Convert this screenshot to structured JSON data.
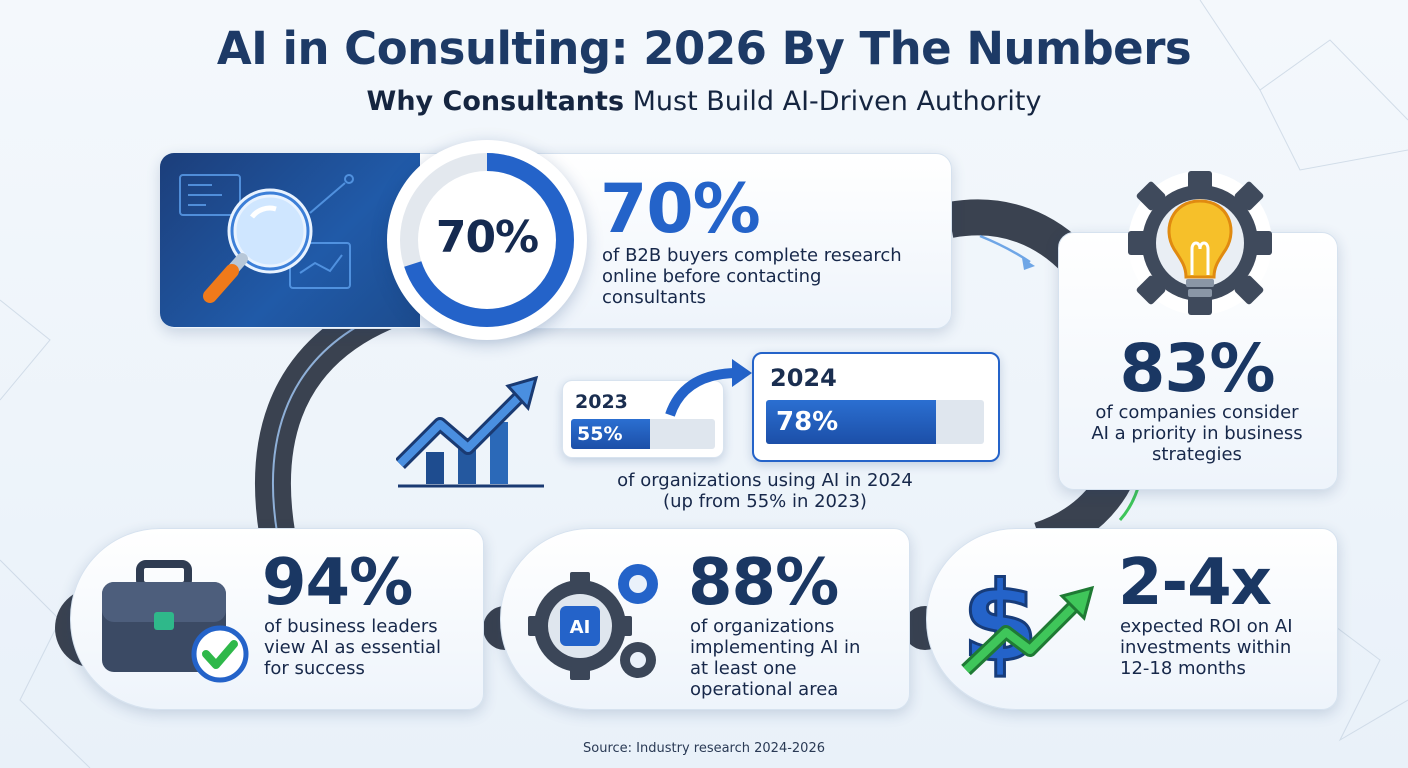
{
  "header": {
    "title": "AI in Consulting: 2026 By The Numbers",
    "subtitle_bold": "Why Consultants",
    "subtitle_rest": "Must Build AI-Driven Authority"
  },
  "stats": {
    "research": {
      "ring_label": "70%",
      "ring_fraction": 0.7,
      "value": "70%",
      "desc": [
        "of B2B buyers complete research",
        "online before contacting",
        "consultants"
      ]
    },
    "priority": {
      "value": "83%",
      "desc": [
        "of companies consider",
        "AI a priority in business",
        "strategies"
      ]
    },
    "adoption": {
      "year_a": "2023",
      "value_a": "55%",
      "fraction_a": 0.55,
      "year_b": "2024",
      "value_b": "78%",
      "fraction_b": 0.78,
      "desc": [
        "of organizations using AI in 2024",
        "(up from 55% in 2023)"
      ]
    },
    "leaders": {
      "value": "94%",
      "desc": [
        "of business leaders",
        "view AI as essential",
        "for success"
      ]
    },
    "implementing": {
      "value": "88%",
      "desc": [
        "of organizations",
        "implementing AI in",
        "at least one",
        "operational area"
      ],
      "chip_label": "AI"
    },
    "roi": {
      "value": "2-4x",
      "desc": [
        "expected ROI on AI",
        "investments within",
        "12-18 months"
      ]
    }
  },
  "icons": [
    "magnifier-icon",
    "lightbulb-gear-icon",
    "growth-chart-icon",
    "briefcase-check-icon",
    "ai-gears-icon",
    "dollar-growth-icon"
  ],
  "colors": {
    "navy": "#1d3a66",
    "blue": "#2463c9",
    "green": "#2fb84a",
    "orange": "#f07a1a",
    "yellow": "#f6c02a"
  },
  "footer": {
    "source": "Source: Industry research 2024-2026"
  }
}
